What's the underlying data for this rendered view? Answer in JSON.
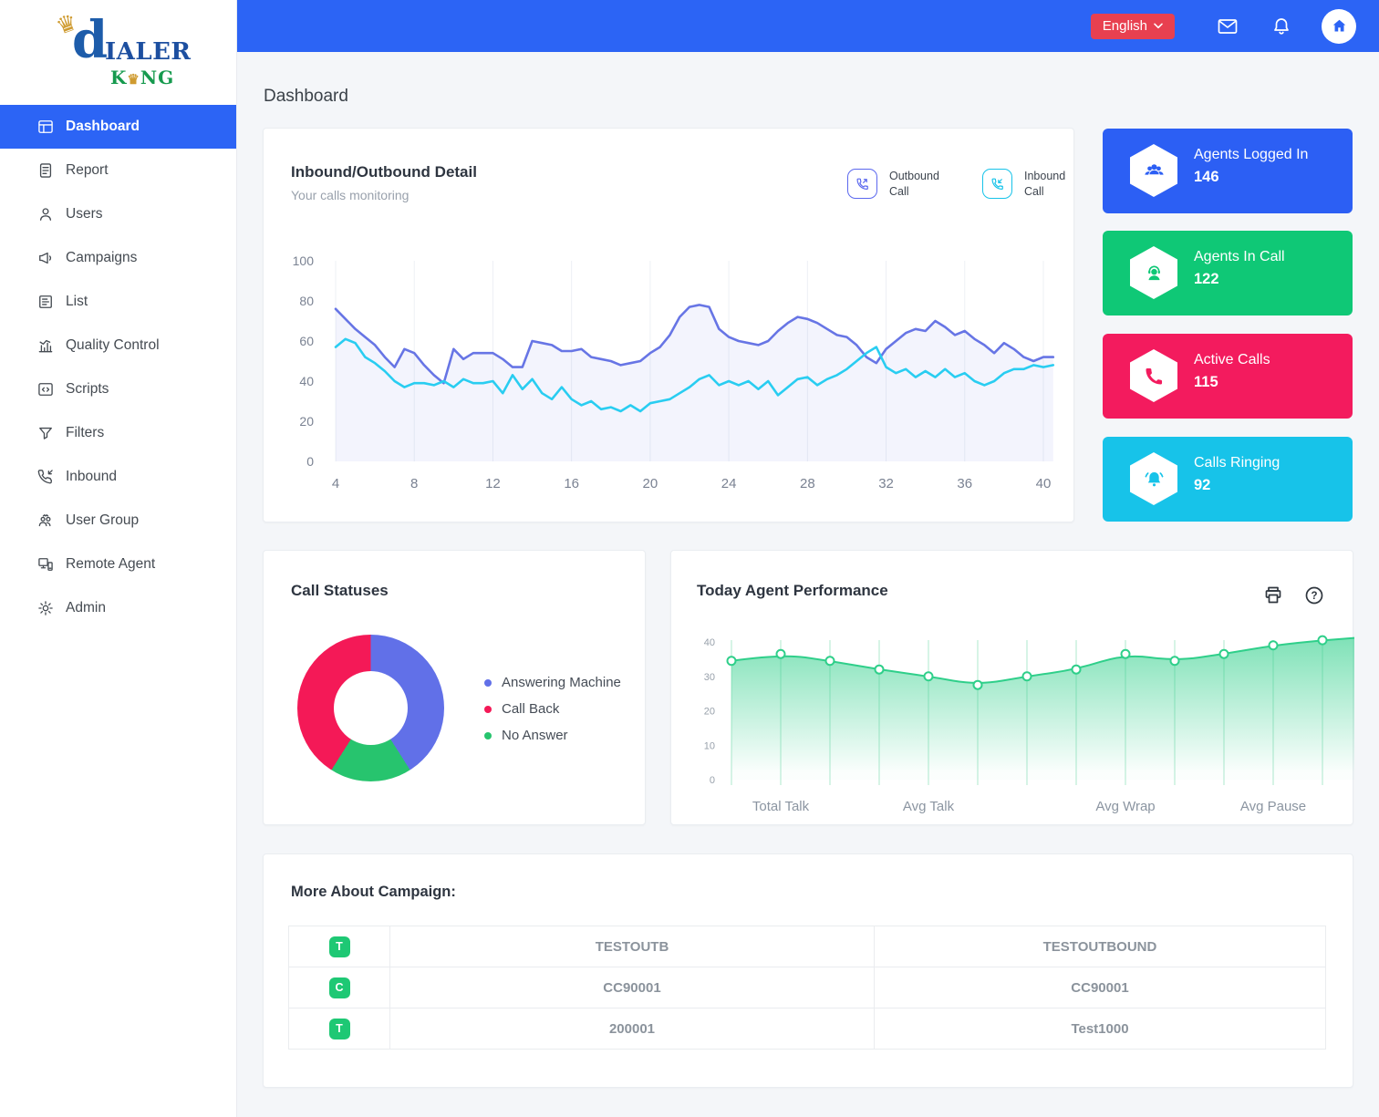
{
  "page_title": "Dashboard",
  "topbar": {
    "language_label": "English",
    "icons": [
      "mail-icon",
      "bell-icon",
      "home-icon"
    ]
  },
  "sidebar": {
    "logo": {
      "initial": "d",
      "word": "IALER",
      "king_left": "K",
      "king_right": "NG",
      "crown_glyph": "♛"
    },
    "items": [
      {
        "label": "Dashboard",
        "icon": "dashboard-icon",
        "active": true
      },
      {
        "label": "Report",
        "icon": "report-icon",
        "active": false
      },
      {
        "label": "Users",
        "icon": "users-icon",
        "active": false
      },
      {
        "label": "Campaigns",
        "icon": "campaigns-icon",
        "active": false
      },
      {
        "label": "List",
        "icon": "list-icon",
        "active": false
      },
      {
        "label": "Quality Control",
        "icon": "quality-control-icon",
        "active": false
      },
      {
        "label": "Scripts",
        "icon": "scripts-icon",
        "active": false
      },
      {
        "label": "Filters",
        "icon": "filters-icon",
        "active": false
      },
      {
        "label": "Inbound",
        "icon": "inbound-icon",
        "active": false
      },
      {
        "label": "User Group",
        "icon": "user-group-icon",
        "active": false
      },
      {
        "label": "Remote Agent",
        "icon": "remote-agent-icon",
        "active": false
      },
      {
        "label": "Admin",
        "icon": "admin-icon",
        "active": false
      }
    ]
  },
  "stat_cards": [
    {
      "title": "Agents Logged In",
      "value": "146",
      "color": "#2c5ff4",
      "icon": "agents-logged-in-icon"
    },
    {
      "title": "Agents In Call",
      "value": "122",
      "color": "#0fc876",
      "icon": "agents-in-call-icon"
    },
    {
      "title": "Active Calls",
      "value": "115",
      "color": "#f31b5e",
      "icon": "active-calls-icon"
    },
    {
      "title": "Calls Ringing",
      "value": "92",
      "color": "#17c3e9",
      "icon": "calls-ringing-icon"
    }
  ],
  "chart_data": [
    {
      "type": "line",
      "title": "Inbound/Outbound Detail",
      "subtitle": "Your calls monitoring",
      "x_start": 4,
      "x_step": 0.5,
      "x_ticks": [
        4,
        8,
        12,
        16,
        20,
        24,
        28,
        32,
        36,
        40
      ],
      "y_ticks": [
        0,
        20,
        40,
        60,
        80,
        100
      ],
      "ylim": [
        0,
        100
      ],
      "grid": "vertical",
      "legend_position": "top-right",
      "legend": [
        {
          "label": "Outbound Call",
          "color": "#5b68ee"
        },
        {
          "label": "Inbound Call",
          "color": "#17c3e9"
        }
      ],
      "series": [
        {
          "name": "Outbound Call",
          "color": "#6775e5",
          "fill": "rgba(103,117,229,0.08)",
          "values": [
            76,
            71,
            66,
            62,
            58,
            52,
            47,
            56,
            54,
            48,
            43,
            39,
            56,
            51,
            54,
            54,
            54,
            51,
            47,
            47,
            60,
            59,
            58,
            55,
            55,
            56,
            52,
            51,
            50,
            48,
            49,
            50,
            54,
            57,
            63,
            72,
            77,
            78,
            77,
            66,
            62,
            60,
            59,
            58,
            60,
            65,
            69,
            72,
            71,
            69,
            66,
            63,
            62,
            58,
            52,
            49,
            56,
            60,
            64,
            66,
            65,
            70,
            67,
            63,
            65,
            61,
            58,
            54,
            59,
            56,
            52,
            50,
            52,
            52
          ]
        },
        {
          "name": "Inbound Call",
          "color": "#29cdf1",
          "values": [
            57,
            61,
            59,
            52,
            49,
            45,
            40,
            37,
            39,
            39,
            38,
            40,
            37,
            41,
            39,
            39,
            40,
            34,
            43,
            36,
            41,
            34,
            31,
            37,
            31,
            28,
            30,
            26,
            27,
            25,
            28,
            25,
            29,
            30,
            31,
            34,
            37,
            41,
            43,
            38,
            40,
            38,
            40,
            36,
            40,
            33,
            37,
            41,
            42,
            38,
            41,
            43,
            46,
            50,
            54,
            57,
            47,
            44,
            46,
            42,
            45,
            42,
            46,
            42,
            44,
            40,
            38,
            40,
            44,
            46,
            46,
            48,
            47,
            48
          ]
        }
      ]
    },
    {
      "type": "pie",
      "title": "Call Statuses",
      "donut": true,
      "slices": [
        {
          "label": "Answering Machine",
          "value": 41,
          "color": "#6170e8"
        },
        {
          "label": "Call Back",
          "value": 41,
          "color": "#f41957"
        },
        {
          "label": "No Answer",
          "value": 18,
          "color": "#27c46e"
        }
      ],
      "draw_order": [
        0,
        2,
        1
      ],
      "legend_position": "right"
    },
    {
      "type": "area",
      "title": "Today Agent Performance",
      "color": "#2fcf8a",
      "values": [
        34.5,
        36.5,
        34.5,
        32,
        30,
        27.5,
        30,
        32,
        36.5,
        34.5,
        36.5,
        39,
        40.5,
        41.5
      ],
      "x_labels": [
        {
          "label": "Total Talk",
          "index": 1
        },
        {
          "label": "Avg Talk",
          "index": 4
        },
        {
          "label": "Avg Wrap",
          "index": 8
        },
        {
          "label": "Avg Pause",
          "index": 11
        }
      ],
      "y_ticks": [
        0,
        10,
        20,
        30,
        40
      ],
      "ylim": [
        0,
        42
      ],
      "tools": [
        "print-icon",
        "help-icon"
      ]
    }
  ],
  "campaign": {
    "title": "More About Campaign:",
    "badge_color": "#1ec874",
    "rows": [
      [
        "T",
        "TESTOUTB",
        "TESTOUTBOUND"
      ],
      [
        "C",
        "CC90001",
        "CC90001"
      ],
      [
        "T",
        "200001",
        "Test1000"
      ]
    ]
  }
}
